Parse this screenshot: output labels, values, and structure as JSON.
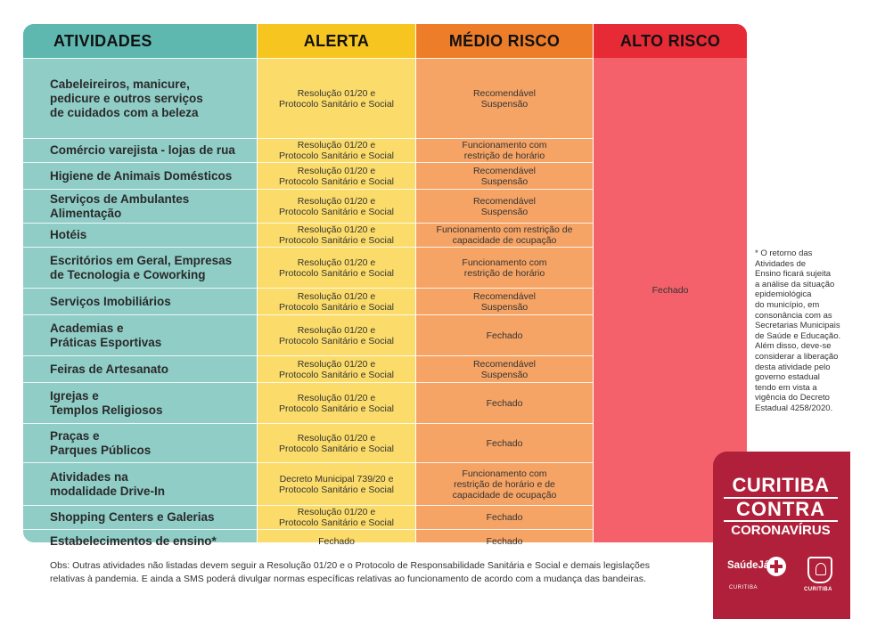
{
  "headers": {
    "atividades": "ATIVIDADES",
    "alerta": "ALERTA",
    "medio": "MÉDIO RISCO",
    "alto": "ALTO RISCO"
  },
  "rows": [
    {
      "atividade": [
        "Cabeleireiros, manicure,",
        "pedicure e outros serviços",
        "de cuidados com a beleza"
      ],
      "alerta": [
        "Resolução 01/20 e",
        "Protocolo Sanitário e Social"
      ],
      "medio": [
        "Recomendável",
        "Suspensão"
      ]
    },
    {
      "atividade": [
        "Comércio varejista - lojas de rua"
      ],
      "alerta": [
        "Resolução 01/20 e",
        "Protocolo Sanitário e Social"
      ],
      "medio": [
        "Funcionamento com",
        "restrição de horário"
      ]
    },
    {
      "atividade": [
        "Higiene de Animais Domésticos"
      ],
      "alerta": [
        "Resolução 01/20 e",
        "Protocolo Sanitário e Social"
      ],
      "medio": [
        "Recomendável",
        "Suspensão"
      ]
    },
    {
      "atividade": [
        "Serviços de Ambulantes",
        "Alimentação"
      ],
      "alerta": [
        "Resolução 01/20 e",
        "Protocolo Sanitário e Social"
      ],
      "medio": [
        "Recomendável",
        "Suspensão"
      ]
    },
    {
      "atividade": [
        "Hotéis"
      ],
      "alerta": [
        "Resolução 01/20 e",
        "Protocolo Sanitário e Social"
      ],
      "medio": [
        "Funcionamento com restrição de",
        "capacidade de ocupação"
      ]
    },
    {
      "atividade": [
        "Escritórios em Geral, Empresas",
        "de Tecnologia e Coworking"
      ],
      "alerta": [
        "Resolução 01/20 e",
        "Protocolo Sanitário e Social"
      ],
      "medio": [
        "Funcionamento com",
        "restrição de horário"
      ]
    },
    {
      "atividade": [
        "Serviços Imobiliários"
      ],
      "alerta": [
        "Resolução 01/20 e",
        "Protocolo Sanitário e Social"
      ],
      "medio": [
        "Recomendável",
        "Suspensão"
      ]
    },
    {
      "atividade": [
        "Academias e",
        "Práticas Esportivas"
      ],
      "alerta": [
        "Resolução 01/20 e",
        "Protocolo Sanitário e Social"
      ],
      "medio": [
        "Fechado"
      ]
    },
    {
      "atividade": [
        "Feiras de Artesanato"
      ],
      "alerta": [
        "Resolução 01/20 e",
        "Protocolo Sanitário e Social"
      ],
      "medio": [
        "Recomendável",
        "Suspensão"
      ]
    },
    {
      "atividade": [
        "Igrejas e",
        "Templos Religiosos"
      ],
      "alerta": [
        "Resolução 01/20 e",
        "Protocolo Sanitário e Social"
      ],
      "medio": [
        "Fechado"
      ]
    },
    {
      "atividade": [
        "Praças e",
        "Parques Públicos"
      ],
      "alerta": [
        "Resolução 01/20 e",
        "Protocolo Sanitário e Social"
      ],
      "medio": [
        "Fechado"
      ]
    },
    {
      "atividade": [
        "Atividades na",
        "modalidade Drive-In"
      ],
      "alerta": [
        "Decreto Municipal 739/20 e",
        "Protocolo Sanitário e Social"
      ],
      "medio": [
        "Funcionamento com",
        "restrição de horário e de",
        "capacidade de ocupação"
      ]
    },
    {
      "atividade": [
        "Shopping Centers e Galerias"
      ],
      "alerta": [
        "Resolução 01/20 e",
        "Protocolo Sanitário e Social"
      ],
      "medio": [
        "Fechado"
      ]
    },
    {
      "atividade": [
        "Estabelecimentos de ensino*"
      ],
      "alerta": [
        "Fechado"
      ],
      "medio": [
        "Fechado"
      ]
    }
  ],
  "alto_risco_value": "Fechado",
  "side_note": [
    "* O retorno das",
    "Atividades de",
    "Ensino ficará sujeita",
    "a análise da situação",
    "epidemiológica",
    "do município, em",
    "consonância com as",
    "Secretarias Municipais",
    "de Saúde e Educação.",
    "Além disso, deve-se",
    "considerar a liberação",
    "desta atividade pelo",
    "governo estadual",
    "tendo em vista a",
    "vigência do Decreto",
    "Estadual 4258/2020."
  ],
  "obs": [
    "Obs: Outras atividades não listadas devem seguir a Resolução 01/20 e o Protocolo de Responsabilidade Sanitária e Social e demais legislações",
    "relativas à pandemia. E ainda a SMS poderá divulgar normas específicas relativas ao funcionamento de acordo com a mudança das bandeiras."
  ],
  "brand": {
    "line1": "CURITIBA",
    "line2": "CONTRA",
    "line3": "CORONAVÍRUS",
    "saude": "SaúdeJá",
    "saude_sub": "CURITIBA",
    "crest_label": "CURITIBA"
  },
  "colors": {
    "atividades_header": "#5fb8b0",
    "atividades_body": "#8fcdc6",
    "alerta_header": "#f7c51f",
    "alerta_body": "#fbdc6a",
    "medio_header": "#ee7d2a",
    "medio_body": "#f6a465",
    "alto_header": "#e62a36",
    "alto_body": "#f4616b",
    "brand": "#b0203a"
  }
}
